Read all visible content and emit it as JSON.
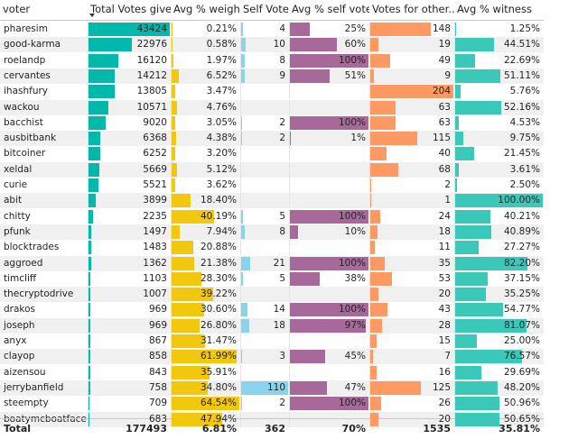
{
  "table": {
    "columns": [
      {
        "key": "voter",
        "label": "voter"
      },
      {
        "key": "total_votes",
        "label": "Total Votes given",
        "sorted": "descending"
      },
      {
        "key": "avg_weight",
        "label": "Avg % weight"
      },
      {
        "key": "self_votes",
        "label": "Self Votes"
      },
      {
        "key": "avg_self",
        "label": "Avg % self votes"
      },
      {
        "key": "votes_other",
        "label": "Votes for other..."
      },
      {
        "key": "avg_witness",
        "label": "Avg % witness"
      }
    ],
    "bar_colors": {
      "total_votes": "#01b8aa",
      "avg_weight": "#f2c80f",
      "self_votes": "#8ad4eb",
      "avg_self": "#a66999",
      "votes_other": "#fd9a64",
      "avg_witness": "#3cc8b9"
    },
    "rows": [
      {
        "voter": "pharesim",
        "total_votes": "43424",
        "avg_weight": "0.21%",
        "self_votes": "4",
        "avg_self": "25%",
        "votes_other": "148",
        "avg_witness": "1.25%"
      },
      {
        "voter": "good-karma",
        "total_votes": "22976",
        "avg_weight": "0.58%",
        "self_votes": "10",
        "avg_self": "60%",
        "votes_other": "19",
        "avg_witness": "44.51%"
      },
      {
        "voter": "roelandp",
        "total_votes": "16120",
        "avg_weight": "1.97%",
        "self_votes": "8",
        "avg_self": "100%",
        "votes_other": "49",
        "avg_witness": "22.69%"
      },
      {
        "voter": "cervantes",
        "total_votes": "14212",
        "avg_weight": "6.52%",
        "self_votes": "9",
        "avg_self": "51%",
        "votes_other": "9",
        "avg_witness": "51.11%"
      },
      {
        "voter": "ihashfury",
        "total_votes": "13805",
        "avg_weight": "3.47%",
        "self_votes": "",
        "avg_self": "",
        "votes_other": "204",
        "avg_witness": "5.76%"
      },
      {
        "voter": "wackou",
        "total_votes": "10571",
        "avg_weight": "4.76%",
        "self_votes": "",
        "avg_self": "",
        "votes_other": "63",
        "avg_witness": "52.16%"
      },
      {
        "voter": "bacchist",
        "total_votes": "9020",
        "avg_weight": "3.05%",
        "self_votes": "2",
        "avg_self": "100%",
        "votes_other": "63",
        "avg_witness": "4.53%"
      },
      {
        "voter": "ausbitbank",
        "total_votes": "6368",
        "avg_weight": "4.38%",
        "self_votes": "2",
        "avg_self": "1%",
        "votes_other": "115",
        "avg_witness": "9.75%"
      },
      {
        "voter": "bitcoiner",
        "total_votes": "6252",
        "avg_weight": "3.20%",
        "self_votes": "",
        "avg_self": "",
        "votes_other": "40",
        "avg_witness": "21.45%"
      },
      {
        "voter": "xeldal",
        "total_votes": "5669",
        "avg_weight": "5.12%",
        "self_votes": "",
        "avg_self": "",
        "votes_other": "68",
        "avg_witness": "3.61%"
      },
      {
        "voter": "curie",
        "total_votes": "5521",
        "avg_weight": "3.62%",
        "self_votes": "",
        "avg_self": "",
        "votes_other": "2",
        "avg_witness": "2.50%"
      },
      {
        "voter": "abit",
        "total_votes": "3899",
        "avg_weight": "18.40%",
        "self_votes": "",
        "avg_self": "",
        "votes_other": "1",
        "avg_witness": "100.00%"
      },
      {
        "voter": "chitty",
        "total_votes": "2235",
        "avg_weight": "40.19%",
        "self_votes": "5",
        "avg_self": "100%",
        "votes_other": "24",
        "avg_witness": "40.21%"
      },
      {
        "voter": "pfunk",
        "total_votes": "1497",
        "avg_weight": "7.94%",
        "self_votes": "8",
        "avg_self": "10%",
        "votes_other": "18",
        "avg_witness": "40.89%"
      },
      {
        "voter": "blocktrades",
        "total_votes": "1483",
        "avg_weight": "20.88%",
        "self_votes": "",
        "avg_self": "",
        "votes_other": "11",
        "avg_witness": "27.27%"
      },
      {
        "voter": "aggroed",
        "total_votes": "1362",
        "avg_weight": "21.38%",
        "self_votes": "21",
        "avg_self": "100%",
        "votes_other": "35",
        "avg_witness": "82.20%"
      },
      {
        "voter": "timcliff",
        "total_votes": "1103",
        "avg_weight": "28.30%",
        "self_votes": "5",
        "avg_self": "38%",
        "votes_other": "53",
        "avg_witness": "37.15%"
      },
      {
        "voter": "thecryptodrive",
        "total_votes": "1007",
        "avg_weight": "39.22%",
        "self_votes": "",
        "avg_self": "",
        "votes_other": "20",
        "avg_witness": "35.25%"
      },
      {
        "voter": "drakos",
        "total_votes": "969",
        "avg_weight": "30.60%",
        "self_votes": "14",
        "avg_self": "100%",
        "votes_other": "43",
        "avg_witness": "54.77%"
      },
      {
        "voter": "joseph",
        "total_votes": "969",
        "avg_weight": "26.80%",
        "self_votes": "18",
        "avg_self": "97%",
        "votes_other": "28",
        "avg_witness": "81.07%"
      },
      {
        "voter": "anyx",
        "total_votes": "867",
        "avg_weight": "31.47%",
        "self_votes": "",
        "avg_self": "",
        "votes_other": "15",
        "avg_witness": "25.00%"
      },
      {
        "voter": "clayop",
        "total_votes": "858",
        "avg_weight": "61.99%",
        "self_votes": "3",
        "avg_self": "45%",
        "votes_other": "7",
        "avg_witness": "76.57%"
      },
      {
        "voter": "aizensou",
        "total_votes": "843",
        "avg_weight": "35.91%",
        "self_votes": "",
        "avg_self": "",
        "votes_other": "16",
        "avg_witness": "29.69%"
      },
      {
        "voter": "jerrybanfield",
        "total_votes": "758",
        "avg_weight": "34.80%",
        "self_votes": "110",
        "avg_self": "47%",
        "votes_other": "125",
        "avg_witness": "48.20%"
      },
      {
        "voter": "steempty",
        "total_votes": "709",
        "avg_weight": "64.54%",
        "self_votes": "2",
        "avg_self": "100%",
        "votes_other": "26",
        "avg_witness": "50.96%"
      },
      {
        "voter": "boatymcboatface",
        "total_votes": "683",
        "avg_weight": "47.94%",
        "self_votes": "",
        "avg_self": "",
        "votes_other": "20",
        "avg_witness": "50.65%"
      }
    ],
    "totals": {
      "voter": "Total",
      "total_votes": "177493",
      "avg_weight": "6.81%",
      "self_votes": "362",
      "avg_self": "70%",
      "votes_other": "1535",
      "avg_witness": "35.81%"
    }
  }
}
